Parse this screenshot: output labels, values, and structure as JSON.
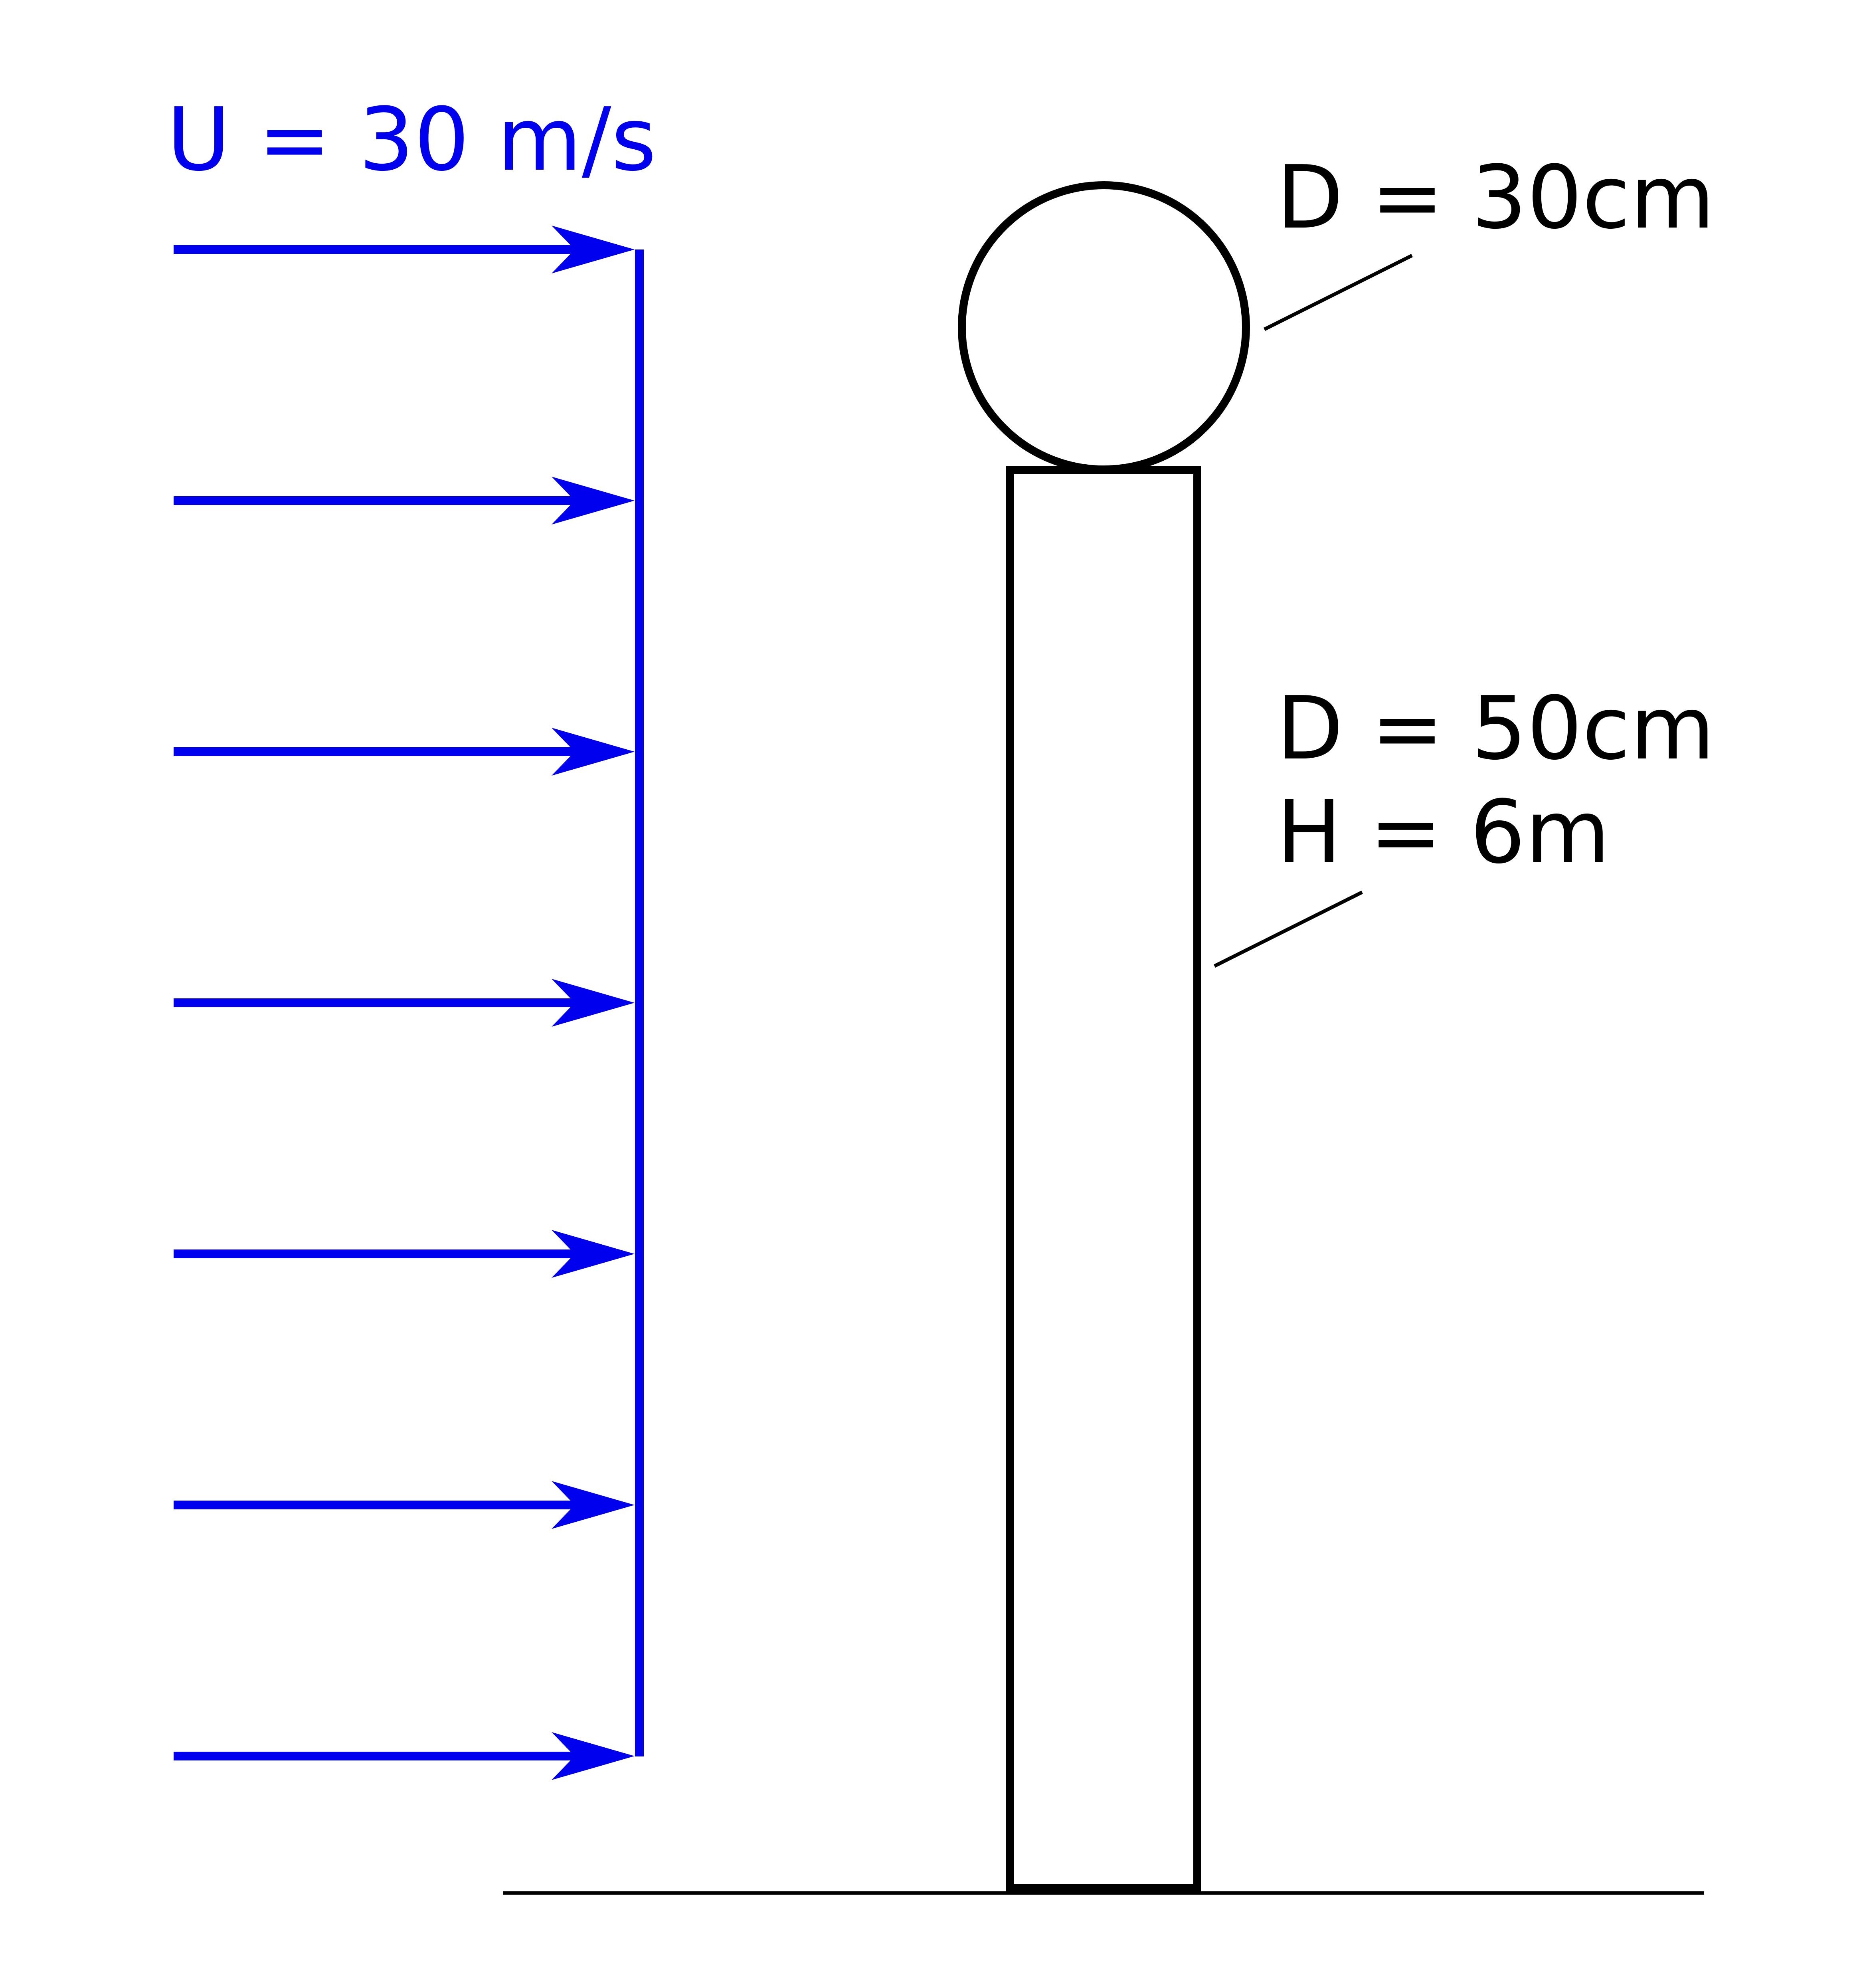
{
  "flow": {
    "label": "U = 30 m/s",
    "arrow_count": 7,
    "color": "#0000ee"
  },
  "sphere": {
    "diameter_label": "D = 30cm"
  },
  "pole": {
    "diameter_label": "D = 50cm",
    "height_label": "H = 6m"
  },
  "colors": {
    "flow": "#0000ee",
    "structure": "#000000",
    "background": "#ffffff"
  }
}
